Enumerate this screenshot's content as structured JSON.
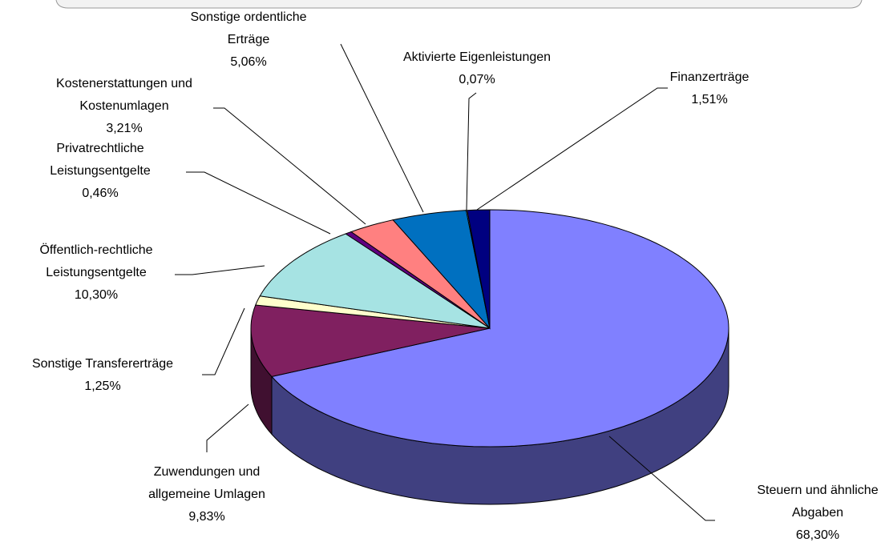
{
  "chart_data": {
    "type": "pie3d",
    "labels": [
      "Steuern und ähnliche Abgaben",
      "Zuwendungen und allgemeine Umlagen",
      "Sonstige Transfererträge",
      "Öffentlich-rechtliche Leistungsentgelte",
      "Privatrechtliche Leistungsentgelte",
      "Kostenerstattungen und Kostenumlagen",
      "Sonstige ordentliche Erträge",
      "Aktivierte Eigenleistungen",
      "Finanzerträge"
    ],
    "values": [
      68.3,
      9.83,
      1.25,
      10.3,
      0.46,
      3.21,
      5.06,
      0.07,
      1.51
    ],
    "value_labels": [
      "68,30%",
      "9,83%",
      "1,25%",
      "10,30%",
      "0,46%",
      "3,21%",
      "5,06%",
      "0,07%",
      "1,51%"
    ],
    "colors": [
      "#8080ff",
      "#802060",
      "#ffffcc",
      "#a6e3e3",
      "#600080",
      "#ff8080",
      "#0070c0",
      "#c0d8f0",
      "#000080"
    ]
  }
}
